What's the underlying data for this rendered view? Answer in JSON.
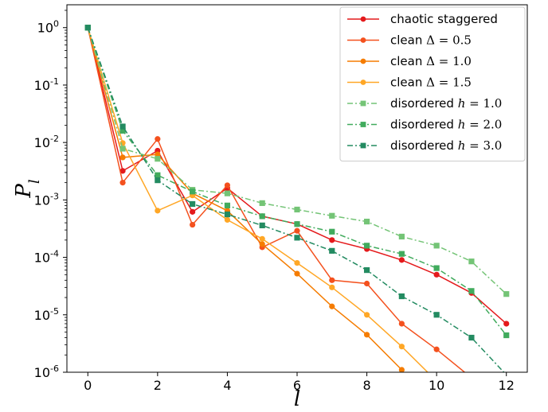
{
  "chart_data": {
    "type": "line",
    "xlabel": "l",
    "ylabel_main": "P",
    "ylabel_sub": "l",
    "yscale": "log",
    "xlim": [
      -0.6,
      12.6
    ],
    "ylim": [
      1e-06,
      2.5
    ],
    "x_ticks": [
      0,
      2,
      4,
      6,
      8,
      10,
      12
    ],
    "y_ticks": [
      {
        "value": 1,
        "base": "10",
        "exp": "0"
      },
      {
        "value": 0.1,
        "base": "10",
        "exp": "-1"
      },
      {
        "value": 0.01,
        "base": "10",
        "exp": "-2"
      },
      {
        "value": 0.001,
        "base": "10",
        "exp": "-3"
      },
      {
        "value": 0.0001,
        "base": "10",
        "exp": "-4"
      },
      {
        "value": 1e-05,
        "base": "10",
        "exp": "-5"
      },
      {
        "value": 1e-06,
        "base": "10",
        "exp": "-6"
      }
    ],
    "grid": false,
    "legend_position": "top-right",
    "series": [
      {
        "name": "chaotic staggered",
        "label_plain": "chaotic staggered",
        "color": "#e41a1c",
        "marker": "circle",
        "dash": "solid",
        "x": [
          0,
          1,
          2,
          3,
          4,
          5,
          6,
          7,
          8,
          9,
          10,
          11,
          12
        ],
        "y": [
          1.0,
          0.0032,
          0.0072,
          0.00062,
          0.0016,
          0.00052,
          0.00038,
          0.0002,
          0.00014,
          9e-05,
          5e-05,
          2.4e-05,
          7e-06
        ]
      },
      {
        "name": "clean Δ=0.5",
        "label_plain": "clean ",
        "label_sym": "Δ",
        "label_eq": " = 0.5",
        "color": "#f4511e",
        "marker": "circle",
        "dash": "solid",
        "x": [
          0,
          1,
          2,
          3,
          4,
          5,
          6,
          7,
          8,
          9,
          10,
          11
        ],
        "y": [
          1.0,
          0.002,
          0.0115,
          0.00037,
          0.0018,
          0.00015,
          0.00029,
          4e-05,
          3.5e-05,
          7e-06,
          2.5e-06,
          8e-07
        ]
      },
      {
        "name": "clean Δ=1.0",
        "label_plain": "clean ",
        "label_sym": "Δ",
        "label_eq": " = 1.0",
        "color": "#f57c00",
        "marker": "circle",
        "dash": "solid",
        "x": [
          0,
          1,
          2,
          3,
          4,
          5,
          6,
          7,
          8,
          9
        ],
        "y": [
          1.0,
          0.0055,
          0.0062,
          0.0013,
          0.00065,
          0.00017,
          5.2e-05,
          1.4e-05,
          4.5e-06,
          1.1e-06
        ]
      },
      {
        "name": "clean Δ=1.5",
        "label_plain": "clean ",
        "label_sym": "Δ",
        "label_eq": " = 1.5",
        "color": "#ffa726",
        "marker": "circle",
        "dash": "solid",
        "x": [
          0,
          1,
          2,
          3,
          4,
          5,
          6,
          7,
          8,
          9,
          10
        ],
        "y": [
          1.0,
          0.0098,
          0.00065,
          0.0012,
          0.00045,
          0.00021,
          8e-05,
          3e-05,
          1e-05,
          2.8e-06,
          7e-07
        ]
      },
      {
        "name": "disordered h=1.0",
        "label_plain": "disordered ",
        "label_sym": "h",
        "label_eq": " = 1.0",
        "color": "#74c476",
        "marker": "square",
        "dash": "dashdot",
        "x": [
          0,
          1,
          2,
          3,
          4,
          5,
          6,
          7,
          8,
          9,
          10,
          11,
          12
        ],
        "y": [
          1.0,
          0.0078,
          0.0052,
          0.0015,
          0.0013,
          0.00088,
          0.00068,
          0.00053,
          0.00042,
          0.00023,
          0.00016,
          8.5e-05,
          2.3e-05
        ]
      },
      {
        "name": "disordered h=2.0",
        "label_plain": "disordered ",
        "label_sym": "h",
        "label_eq": " = 2.0",
        "color": "#41ab5d",
        "marker": "square",
        "dash": "dashdot",
        "x": [
          0,
          1,
          2,
          3,
          4,
          5,
          6,
          7,
          8,
          9,
          10,
          11,
          12
        ],
        "y": [
          1.0,
          0.016,
          0.0027,
          0.0014,
          0.0008,
          0.00052,
          0.00038,
          0.00028,
          0.00016,
          0.000115,
          6.5e-05,
          2.6e-05,
          4.4e-06
        ]
      },
      {
        "name": "disordered h=3.0",
        "label_plain": "disordered ",
        "label_sym": "h",
        "label_eq": " = 3.0",
        "color": "#238b61",
        "marker": "square",
        "dash": "dashdot",
        "x": [
          0,
          1,
          2,
          3,
          4,
          5,
          6,
          7,
          8,
          9,
          10,
          11,
          12
        ],
        "y": [
          1.0,
          0.019,
          0.0022,
          0.00085,
          0.00056,
          0.00036,
          0.00022,
          0.00013,
          6e-05,
          2.1e-05,
          1e-05,
          4e-06,
          9e-07
        ]
      }
    ]
  }
}
